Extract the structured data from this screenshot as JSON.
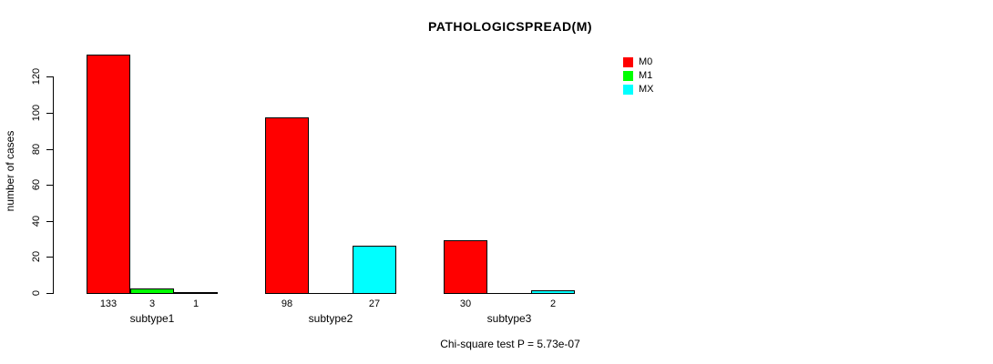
{
  "title": "PATHOLOGICSPREAD(M)",
  "footer": "Chi-square test P = 5.73e-07",
  "y_axis": {
    "label": "number of cases"
  },
  "legend": {
    "position": "top-right",
    "items": [
      {
        "label": "M0",
        "color": "#ff0000"
      },
      {
        "label": "M1",
        "color": "#00ff00"
      },
      {
        "label": "MX",
        "color": "#00ffff"
      }
    ]
  },
  "chart_data": {
    "type": "bar",
    "grouped": true,
    "title": "PATHOLOGICSPREAD(M)",
    "ylabel": "number of cases",
    "xlabel": "",
    "annotation": "Chi-square test P = 5.73e-07",
    "categories": [
      "subtype1",
      "subtype2",
      "subtype3"
    ],
    "series": [
      {
        "name": "M0",
        "color": "#ff0000",
        "values": [
          133,
          98,
          30
        ]
      },
      {
        "name": "M1",
        "color": "#00ff00",
        "values": [
          3,
          0,
          0
        ]
      },
      {
        "name": "MX",
        "color": "#00ffff",
        "values": [
          1,
          27,
          2
        ]
      }
    ],
    "yticks": [
      0,
      20,
      40,
      60,
      80,
      100,
      120
    ],
    "ylim": [
      0,
      133
    ],
    "bar_value_labels_visible": true,
    "zero_values_unlabeled": true,
    "grid": false,
    "legend_position": "top-right"
  }
}
